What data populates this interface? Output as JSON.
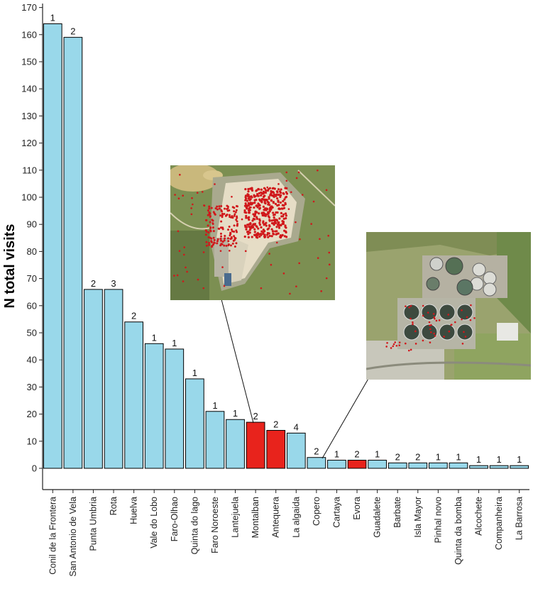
{
  "chart_data": {
    "type": "bar",
    "ylabel": "N total visits",
    "xlabel": "",
    "ylim": [
      -7,
      172
    ],
    "yticks": [
      0,
      10,
      20,
      30,
      40,
      50,
      60,
      70,
      80,
      90,
      100,
      110,
      120,
      130,
      140,
      150,
      160,
      170
    ],
    "grid": false,
    "colors": {
      "default": "#99d8ea",
      "highlight": "#e8231c",
      "edge": "#000000"
    },
    "categories": [
      "Conil de la Frontera",
      "San Antonio de Vela",
      "Punta Umbria",
      "Rota",
      "Huelva",
      "Vale do Lobo",
      "Faro-Olhao",
      "Quinta do lago",
      "Faro Noroeste",
      "Lantejuela",
      "Montalban",
      "Antequera",
      "La algaida",
      "Copero",
      "Cartaya",
      "Evora",
      "Guadalete",
      "Barbate",
      "Isla Mayor",
      "Pinhal novo",
      "Quinta da bomba",
      "Alcochete",
      "Companheira",
      "La Barrosa"
    ],
    "values": [
      164,
      159,
      66,
      66,
      54,
      46,
      44,
      33,
      21,
      18,
      17,
      14,
      13,
      4,
      3,
      3,
      3,
      2,
      2,
      2,
      2,
      1,
      1,
      1
    ],
    "bar_labels": [
      "1",
      "2",
      "2",
      "3",
      "2",
      "1",
      "1",
      "1",
      "1",
      "1",
      "2",
      "2",
      "4",
      "2",
      "1",
      "2",
      "1",
      "2",
      "2",
      "1",
      "1",
      "1",
      "1",
      "1"
    ],
    "highlighted": [
      "Montalban",
      "Antequera",
      "Evora"
    ],
    "insets": [
      {
        "name": "landfill aerial photo",
        "linked_category": "Montalban"
      },
      {
        "name": "wastewater plant aerial photo",
        "linked_category": "Copero"
      }
    ]
  }
}
